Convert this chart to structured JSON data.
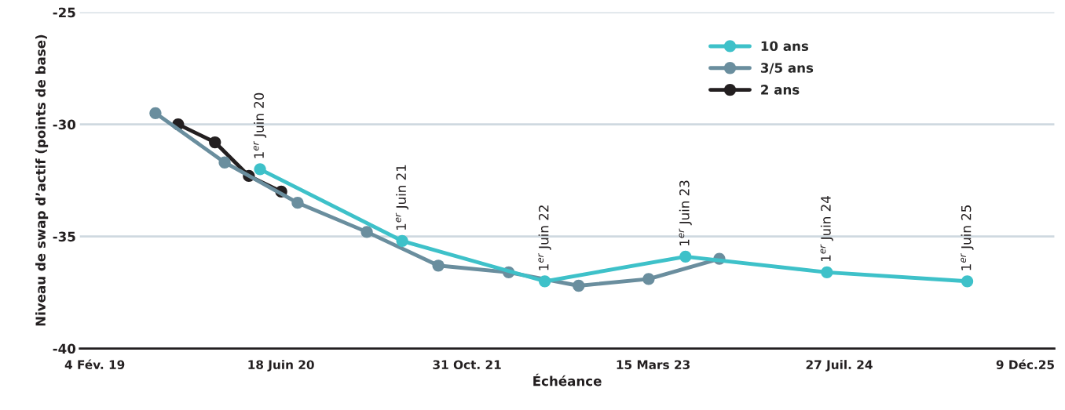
{
  "chart_data": {
    "type": "line",
    "xlabel": "Échéance",
    "ylabel": "Niveau de swap d’actif (points de base)",
    "xlim": [
      "2018-12-26",
      "2026-02-25"
    ],
    "xticks": [
      {
        "value": "2019-02-04",
        "label": "4 Fév. 19"
      },
      {
        "value": "2020-06-18",
        "label": "18 Juin 20"
      },
      {
        "value": "2021-10-31",
        "label": "31 Oct. 21"
      },
      {
        "value": "2023-03-15",
        "label": "15 Mars 23"
      },
      {
        "value": "2024-07-27",
        "label": "27 Juil. 24"
      },
      {
        "value": "2025-12-09",
        "label": "9 Déc.25"
      }
    ],
    "ylim": [
      -40,
      -25
    ],
    "yticks": [
      -40,
      -35,
      -30,
      -25
    ],
    "grid": "y",
    "legend": "top",
    "marker": "circle",
    "line_style": "solid",
    "series": [
      {
        "name": "10 ans",
        "color": "#3ec1c9",
        "x": [
          "2020-04-23",
          "2021-05-10",
          "2022-05-28",
          "2023-06-10",
          "2024-06-24",
          "2025-07-06"
        ],
        "values": [
          -32.0,
          -35.2,
          -37.0,
          -35.9,
          -36.6,
          -37.0
        ]
      },
      {
        "name": "3/5 ans",
        "color": "#6a8e9e",
        "x": [
          "2019-07-17",
          "2020-01-19",
          "2020-08-02",
          "2021-02-04",
          "2021-08-15",
          "2022-02-20",
          "2022-08-27",
          "2023-03-03",
          "2023-09-09"
        ],
        "values": [
          -29.5,
          -31.7,
          -33.5,
          -34.8,
          -36.3,
          -36.6,
          -37.2,
          -36.9,
          -36.0
        ]
      },
      {
        "name": "2 ans",
        "color": "#231f20",
        "x": [
          "2019-09-16",
          "2019-12-24",
          "2020-03-24",
          "2020-06-19"
        ],
        "values": [
          -30.0,
          -30.8,
          -32.3,
          -33.0
        ]
      }
    ],
    "annotations": [
      {
        "text": "1$^{er}$ Juin 20",
        "x": "2020-04-23",
        "y": -32.0
      },
      {
        "text": "1$^{er}$ Juin 21",
        "x": "2021-05-10",
        "y": -35.2
      },
      {
        "text": "1$^{er}$ Juin 22",
        "x": "2022-05-28",
        "y": -37.0
      },
      {
        "text": "1$^{er}$ Juin 23",
        "x": "2023-06-10",
        "y": -35.9
      },
      {
        "text": "1$^{er}$ Juin 24",
        "x": "2024-06-24",
        "y": -36.6
      },
      {
        "text": "1$^{er}$ Juin 25",
        "x": "2025-07-06",
        "y": -37.0
      }
    ]
  }
}
